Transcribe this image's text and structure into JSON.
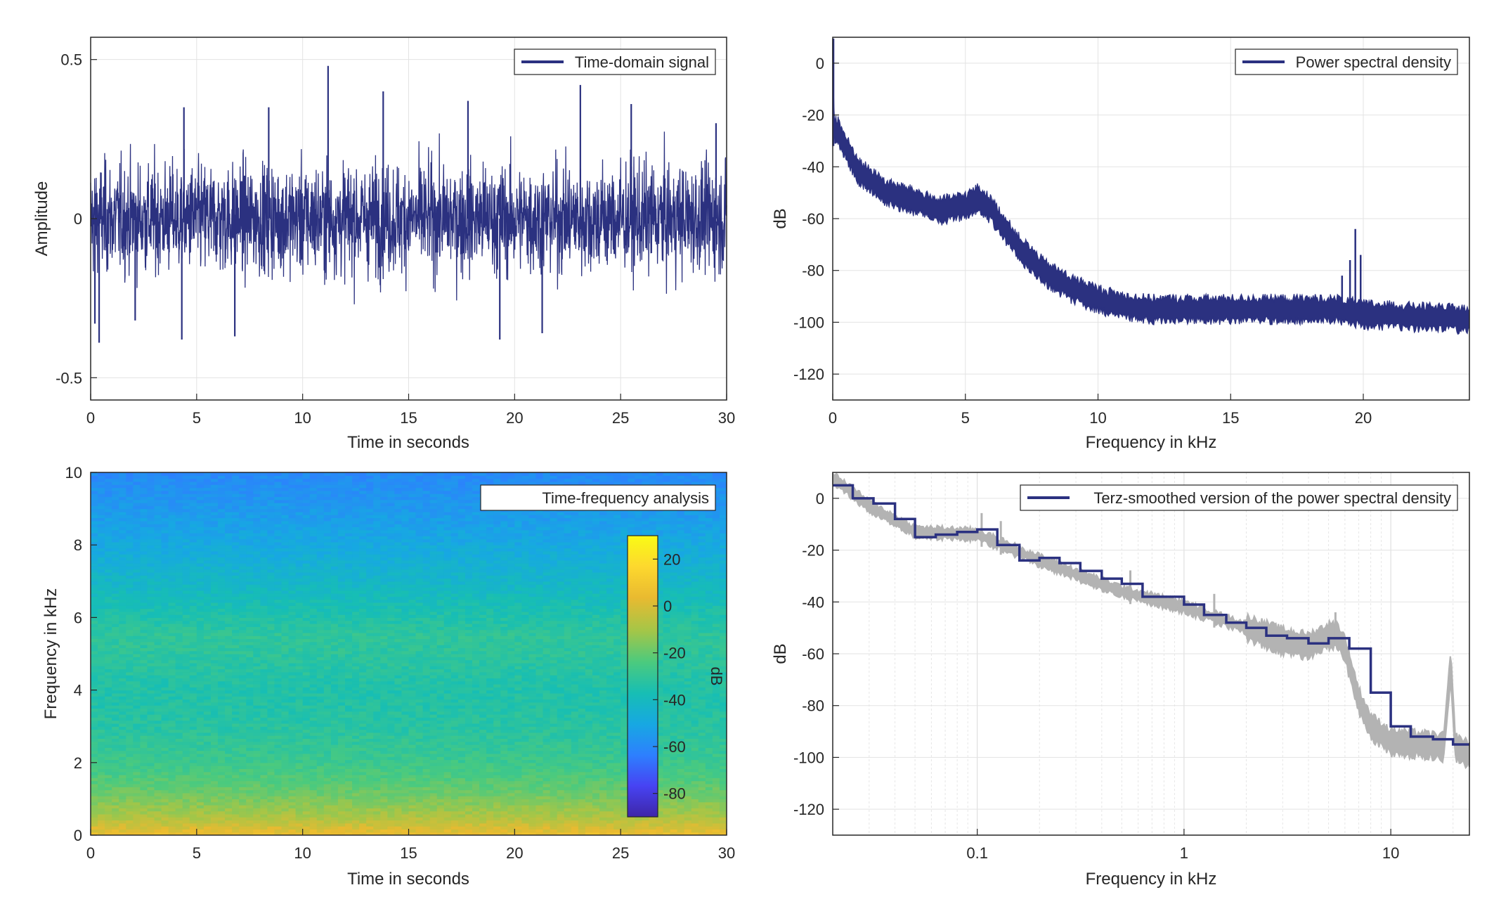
{
  "colors": {
    "signal": "#2b3180",
    "smooth_raw": "#b3b3b3",
    "grid": "#e3e3e3",
    "axis": "#262626",
    "colormap": [
      "#3e26a8",
      "#4743f3",
      "#2d80fe",
      "#17a8e2",
      "#17beb4",
      "#4bca7e",
      "#a3c648",
      "#e9ba30",
      "#fdd82e",
      "#f9fb15"
    ]
  },
  "chart_data": [
    {
      "id": "time-domain",
      "type": "line",
      "title": "",
      "legend": "Time-domain signal",
      "legend_position": "top-right",
      "xlabel": "Time in seconds",
      "ylabel": "Amplitude",
      "xlim": [
        0,
        30
      ],
      "ylim": [
        -0.57,
        0.57
      ],
      "xticks": [
        0,
        5,
        10,
        15,
        20,
        25,
        30
      ],
      "yticks": [
        -0.5,
        0,
        0.5
      ],
      "ytick_labels": [
        "-0.5",
        "0",
        "0.5"
      ],
      "grid": true,
      "series": [
        {
          "name": "Time-domain signal",
          "typical_envelope": [
            -0.2,
            0.22
          ],
          "peaks": [
            {
              "x": 0.2,
              "y": -0.33
            },
            {
              "x": 0.4,
              "y": -0.39
            },
            {
              "x": 4.3,
              "y": -0.38
            },
            {
              "x": 4.4,
              "y": 0.35
            },
            {
              "x": 11.2,
              "y": 0.48
            },
            {
              "x": 13.8,
              "y": 0.4
            },
            {
              "x": 19.3,
              "y": -0.38
            },
            {
              "x": 23.1,
              "y": 0.42
            },
            {
              "x": 25.5,
              "y": 0.36
            },
            {
              "x": 29.5,
              "y": 0.3
            },
            {
              "x": 8.4,
              "y": 0.35
            },
            {
              "x": 6.8,
              "y": -0.37
            },
            {
              "x": 17.8,
              "y": 0.37
            },
            {
              "x": 21.3,
              "y": -0.36
            },
            {
              "x": 2.1,
              "y": -0.32
            }
          ]
        }
      ]
    },
    {
      "id": "psd",
      "type": "line",
      "title": "",
      "legend": "Power spectral density",
      "legend_position": "top-right",
      "xlabel": "Frequency in kHz",
      "ylabel": "dB",
      "xlim": [
        0,
        24
      ],
      "ylim": [
        -130,
        10
      ],
      "xticks": [
        0,
        5,
        10,
        15,
        20
      ],
      "yticks": [
        0,
        -20,
        -40,
        -60,
        -80,
        -100,
        -120
      ],
      "grid": true,
      "series": [
        {
          "name": "Power spectral density",
          "x": [
            0,
            0.05,
            0.2,
            0.5,
            1,
            2,
            3,
            4,
            5,
            5.5,
            6,
            7,
            8,
            9,
            10,
            11,
            12,
            14,
            16,
            18,
            19,
            20,
            22,
            24
          ],
          "y": [
            5,
            -25,
            -26,
            -33,
            -42,
            -50,
            -53,
            -57,
            -55,
            -52,
            -57,
            -71,
            -81,
            -87,
            -91,
            -94,
            -95,
            -95,
            -95,
            -95,
            -95,
            -97,
            -98,
            -99
          ],
          "spikes": [
            {
              "x": 19.2,
              "y": -82
            },
            {
              "x": 19.5,
              "y": -76
            },
            {
              "x": 19.7,
              "y": -64
            },
            {
              "x": 19.9,
              "y": -74
            }
          ]
        }
      ]
    },
    {
      "id": "spectrogram",
      "type": "heatmap",
      "title": "",
      "legend": "Time-frequency analysis",
      "legend_position": "top-right",
      "xlabel": "Time in seconds",
      "ylabel": "Frequency in kHz",
      "xlim": [
        0,
        30
      ],
      "ylim": [
        0,
        10
      ],
      "xticks": [
        0,
        5,
        10,
        15,
        20,
        25,
        30
      ],
      "yticks": [
        0,
        2,
        4,
        6,
        8,
        10
      ],
      "colorbar": {
        "label": "dB",
        "limits": [
          -90,
          30
        ],
        "ticks": [
          20,
          0,
          -20,
          -40,
          -60,
          -80
        ]
      },
      "level_by_frequency": {
        "f": [
          0,
          0.2,
          0.5,
          1,
          1.5,
          2,
          3,
          4,
          5,
          5.5,
          6,
          7,
          8,
          9,
          10
        ],
        "db": [
          5,
          0,
          -8,
          -16,
          -22,
          -27,
          -32,
          -34,
          -31,
          -30,
          -34,
          -42,
          -49,
          -55,
          -60
        ]
      }
    },
    {
      "id": "terz",
      "type": "line",
      "title": "",
      "legend": "Terz-smoothed version of the power spectral density",
      "legend_position": "top-right",
      "xlabel": "Frequency in kHz",
      "ylabel": "dB",
      "xscale": "log",
      "xlim": [
        0.02,
        24
      ],
      "ylim": [
        -130,
        10
      ],
      "xticks": [
        0.1,
        1,
        10
      ],
      "yticks": [
        0,
        -20,
        -40,
        -60,
        -80,
        -100,
        -120
      ],
      "grid": true,
      "series": [
        {
          "name": "Terz-smoothed version of the power spectral density",
          "x": [
            0.02,
            0.025,
            0.0315,
            0.04,
            0.05,
            0.063,
            0.08,
            0.1,
            0.125,
            0.16,
            0.2,
            0.25,
            0.315,
            0.4,
            0.5,
            0.63,
            0.8,
            1,
            1.25,
            1.6,
            2,
            2.5,
            3.15,
            4,
            5,
            6.3,
            8,
            10,
            12.5,
            16,
            20,
            24
          ],
          "y": [
            5,
            0,
            -2,
            -8,
            -15,
            -14,
            -13,
            -12,
            -18,
            -24,
            -23,
            -25,
            -28,
            -31,
            -33,
            -38,
            -38,
            -41,
            -45,
            -48,
            -50,
            -53,
            -54,
            -56,
            -54,
            -58,
            -75,
            -88,
            -92,
            -93,
            -95,
            -95
          ]
        },
        {
          "name": "",
          "x": [
            0.02,
            0.03,
            0.05,
            0.1,
            0.2,
            0.5,
            1,
            2,
            3,
            4,
            5,
            5.5,
            6,
            7,
            8,
            10,
            14,
            18,
            19.5,
            20.5,
            24
          ],
          "y": [
            8,
            -3,
            -13,
            -14,
            -24,
            -36,
            -42,
            -50,
            -55,
            -57,
            -53,
            -53,
            -58,
            -78,
            -88,
            -94,
            -95,
            -96,
            -64,
            -96,
            -99
          ]
        }
      ]
    }
  ]
}
